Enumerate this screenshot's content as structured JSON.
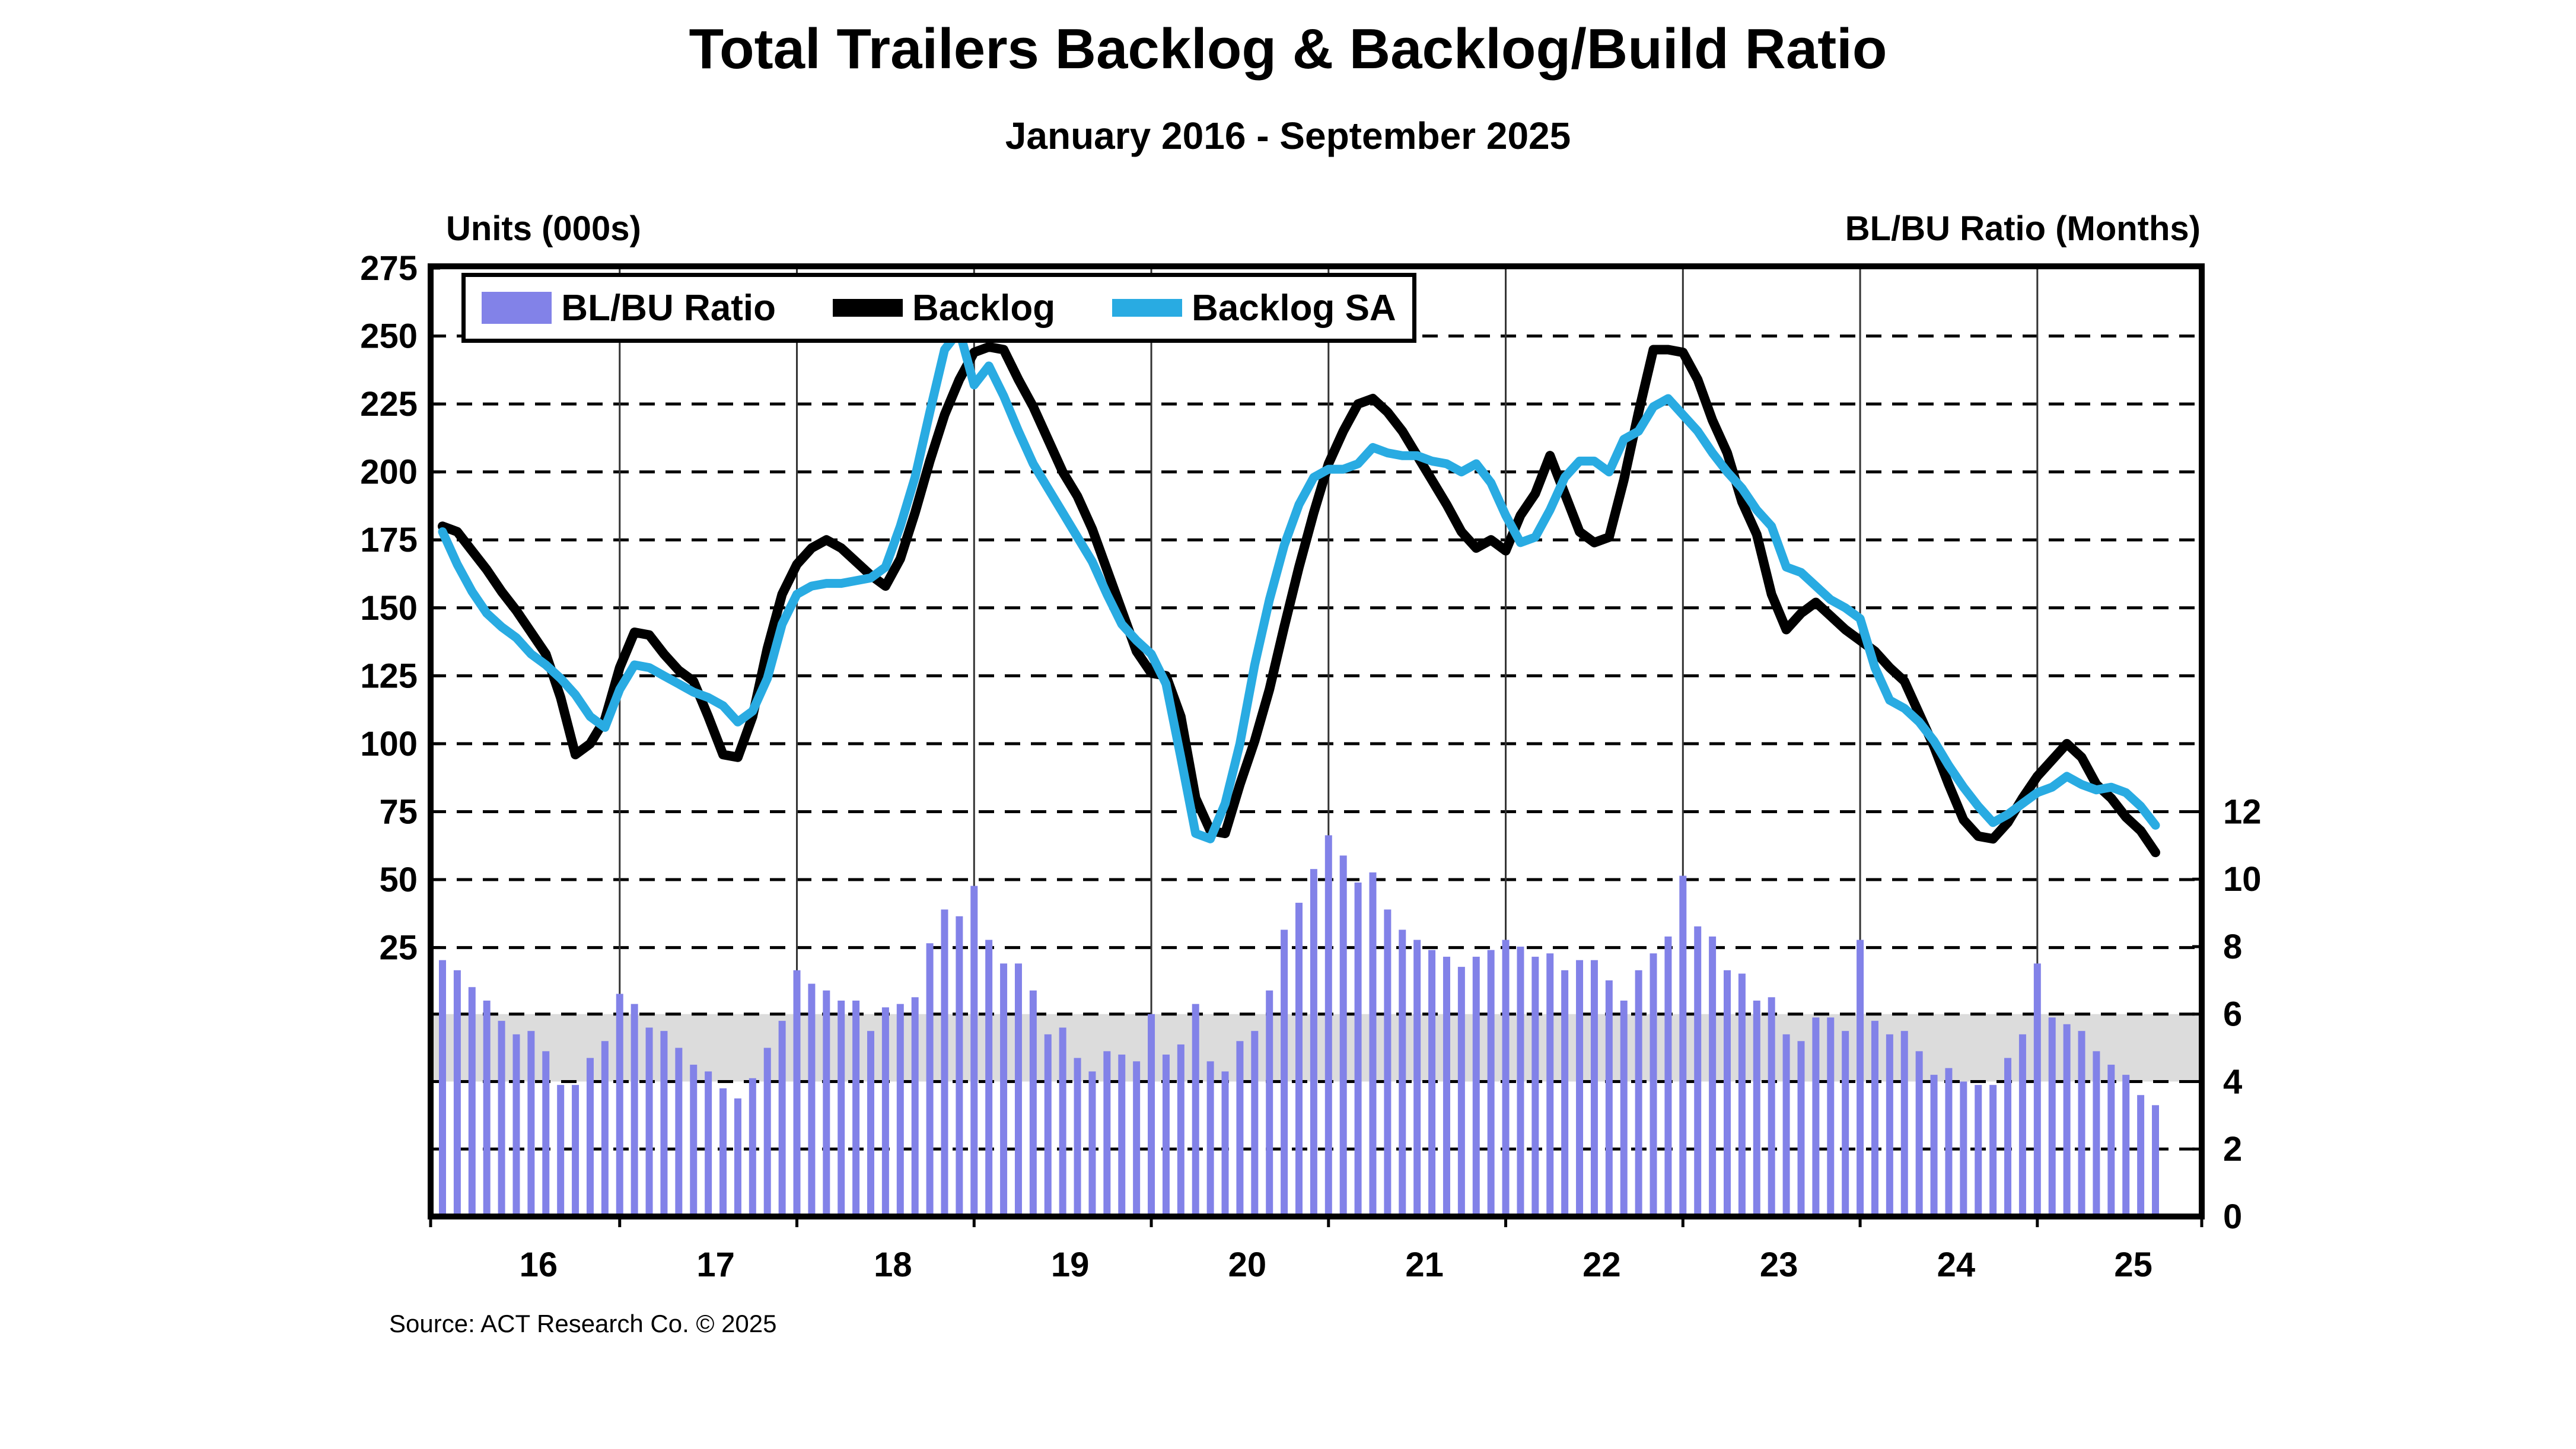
{
  "header": {
    "title": "Total Trailers Backlog & Backlog/Build Ratio",
    "subtitle": "January 2016 - September 2025"
  },
  "axes": {
    "left_title": "Units (000s)",
    "right_title": "BL/BU Ratio (Months)",
    "left_ticks": [
      275,
      250,
      225,
      200,
      175,
      150,
      125,
      100,
      75,
      50,
      25
    ],
    "right_ticks": [
      12,
      10,
      8,
      6,
      4,
      2,
      0
    ],
    "x_ticks": [
      "16",
      "17",
      "18",
      "19",
      "20",
      "21",
      "22",
      "23",
      "24",
      "25"
    ]
  },
  "legend": {
    "items": [
      {
        "label": "BL/BU Ratio",
        "color": "#8282E8",
        "type": "bar"
      },
      {
        "label": "Backlog",
        "color": "#000000",
        "type": "line"
      },
      {
        "label": "Backlog SA",
        "color": "#29ABE2",
        "type": "line"
      }
    ]
  },
  "footer": {
    "source": "Source: ACT Research Co. © 2025"
  },
  "colors": {
    "bar": "#8282E8",
    "backlog": "#000000",
    "backlog_sa": "#29ABE2",
    "band": "#DCDCDC",
    "grid": "#000000",
    "year_line": "#333333"
  },
  "chart_data": {
    "type": "combo-bar-line",
    "frequency": "monthly",
    "start_month": "2016-01",
    "end_month": "2025-09",
    "title": "Total Trailers Backlog & Backlog/Build Ratio",
    "left_axis": {
      "label": "Units (000s)",
      "ticks": [
        275,
        250,
        225,
        200,
        175,
        150,
        125,
        100,
        75,
        50,
        25
      ]
    },
    "right_axis": {
      "label": "BL/BU Ratio (Months)",
      "ticks": [
        12,
        10,
        8,
        6,
        4,
        2,
        0
      ]
    },
    "band": {
      "axis": "right",
      "from": 4,
      "to": 6,
      "note": "gray shaded normal range"
    },
    "x_year_labels": [
      "16",
      "17",
      "18",
      "19",
      "20",
      "21",
      "22",
      "23",
      "24",
      "25"
    ],
    "grid": "dashed horizontal",
    "legend_position": "top-left inside plot",
    "series": [
      {
        "name": "BL/BU Ratio",
        "type": "bar",
        "axis": "right",
        "values": [
          7.6,
          7.3,
          6.8,
          6.4,
          5.8,
          5.4,
          5.5,
          4.9,
          3.9,
          3.9,
          4.7,
          5.2,
          6.6,
          6.3,
          5.6,
          5.5,
          5.0,
          4.5,
          4.3,
          3.8,
          3.5,
          4.1,
          5.0,
          5.8,
          7.3,
          6.9,
          6.7,
          6.4,
          6.4,
          5.5,
          6.2,
          6.3,
          6.5,
          8.1,
          9.1,
          8.9,
          9.8,
          8.2,
          7.5,
          7.5,
          6.7,
          5.4,
          5.6,
          4.7,
          4.3,
          4.9,
          4.8,
          4.6,
          6.0,
          4.8,
          5.1,
          6.3,
          4.6,
          4.3,
          5.2,
          5.5,
          6.7,
          8.5,
          9.3,
          10.3,
          11.3,
          10.7,
          9.9,
          10.2,
          9.1,
          8.5,
          8.2,
          7.9,
          7.7,
          7.4,
          7.7,
          7.9,
          8.2,
          8.0,
          7.7,
          7.8,
          7.3,
          7.6,
          7.6,
          7.0,
          6.4,
          7.3,
          7.8,
          8.3,
          10.1,
          8.6,
          8.3,
          7.3,
          7.2,
          6.4,
          6.5,
          5.4,
          5.2,
          5.9,
          5.9,
          5.5,
          8.2,
          5.8,
          5.4,
          5.5,
          4.9,
          4.2,
          4.4,
          4.0,
          3.9,
          3.9,
          4.7,
          5.4,
          7.5,
          5.9,
          5.7,
          5.5,
          4.9,
          4.5,
          4.2,
          3.6,
          3.3
        ]
      },
      {
        "name": "Backlog",
        "type": "line",
        "axis": "left",
        "values": [
          180,
          178,
          171,
          164,
          156,
          149,
          141,
          133,
          117,
          96,
          100,
          109,
          128,
          141,
          140,
          133,
          127,
          123,
          110,
          96,
          95,
          110,
          135,
          155,
          166,
          172,
          175,
          172,
          167,
          162,
          158,
          168,
          185,
          204,
          221,
          234,
          244,
          246,
          245,
          234,
          224,
          212,
          200,
          191,
          179,
          164,
          149,
          134,
          126,
          125,
          110,
          80,
          68,
          67,
          85,
          101,
          120,
          143,
          165,
          185,
          203,
          215,
          225,
          227,
          222,
          215,
          206,
          197,
          188,
          178,
          172,
          175,
          171,
          184,
          192,
          206,
          192,
          178,
          174,
          176,
          197,
          222,
          245,
          245,
          244,
          234,
          219,
          207,
          189,
          177,
          155,
          142,
          148,
          152,
          147,
          142,
          138,
          134,
          128,
          123,
          111,
          99,
          85,
          72,
          66,
          65,
          71,
          80,
          88,
          94,
          100,
          95,
          85,
          80,
          73,
          68,
          60
        ]
      },
      {
        "name": "Backlog SA",
        "type": "line",
        "axis": "left",
        "values": [
          178,
          166,
          156,
          148,
          143,
          139,
          133,
          129,
          124,
          118,
          110,
          106,
          120,
          129,
          128,
          125,
          122,
          119,
          117,
          114,
          108,
          112,
          124,
          144,
          155,
          158,
          159,
          159,
          160,
          161,
          165,
          180,
          198,
          222,
          245,
          252,
          232,
          239,
          228,
          215,
          203,
          194,
          185,
          176,
          167,
          155,
          144,
          138,
          133,
          122,
          95,
          67,
          65,
          78,
          100,
          129,
          153,
          173,
          188,
          198,
          201,
          201,
          203,
          209,
          207,
          206,
          206,
          204,
          203,
          200,
          203,
          196,
          184,
          174,
          176,
          186,
          198,
          204,
          204,
          200,
          212,
          215,
          224,
          227,
          221,
          215,
          207,
          200,
          194,
          186,
          180,
          165,
          163,
          158,
          153,
          150,
          146,
          128,
          116,
          113,
          108,
          101,
          92,
          84,
          77,
          71,
          74,
          78,
          82,
          84,
          88,
          85,
          83,
          84,
          82,
          77,
          70
        ]
      }
    ]
  }
}
